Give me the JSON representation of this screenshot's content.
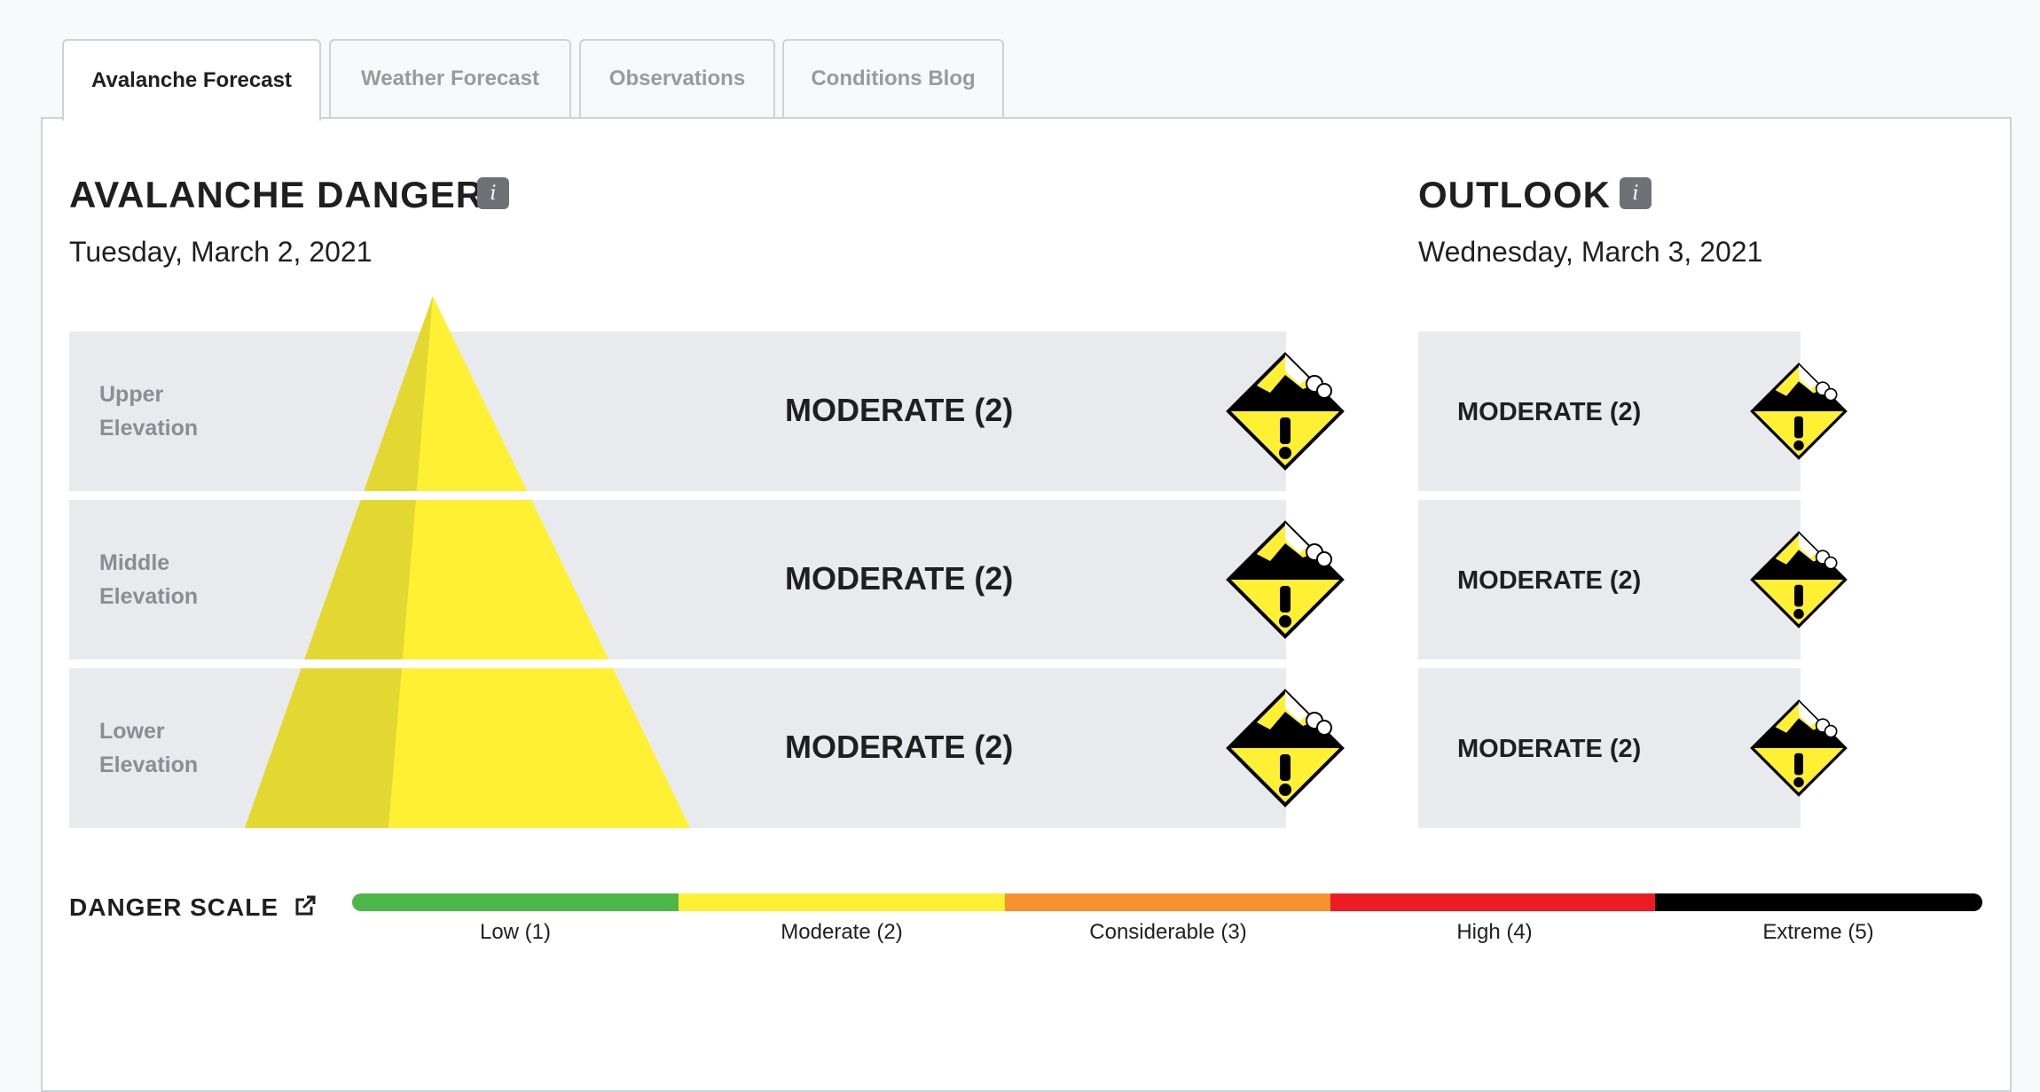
{
  "tabs": [
    {
      "label": "Avalanche Forecast",
      "active": true
    },
    {
      "label": "Weather Forecast",
      "active": false
    },
    {
      "label": "Observations",
      "active": false
    },
    {
      "label": "Conditions Blog",
      "active": false
    }
  ],
  "danger": {
    "title": "AVALANCHE DANGER",
    "info_icon": "info-icon",
    "date": "Tuesday, March 2, 2021",
    "rows": [
      {
        "elevation_line1": "Upper",
        "elevation_line2": "Elevation",
        "rating": "MODERATE (2)"
      },
      {
        "elevation_line1": "Middle",
        "elevation_line2": "Elevation",
        "rating": "MODERATE (2)"
      },
      {
        "elevation_line1": "Lower",
        "elevation_line2": "Elevation",
        "rating": "MODERATE (2)"
      }
    ]
  },
  "outlook": {
    "title": "OUTLOOK",
    "info_icon": "info-icon",
    "date": "Wednesday, March 3, 2021",
    "rows": [
      {
        "rating": "MODERATE (2)"
      },
      {
        "rating": "MODERATE (2)"
      },
      {
        "rating": "MODERATE (2)"
      }
    ]
  },
  "scale": {
    "title": "DANGER SCALE",
    "external_icon": "external-link-icon",
    "levels": [
      {
        "label": "Low (1)",
        "color": "#4cb748"
      },
      {
        "label": "Moderate (2)",
        "color": "#fff033"
      },
      {
        "label": "Considerable (3)",
        "color": "#f7922f"
      },
      {
        "label": "High (4)",
        "color": "#ed1c24"
      },
      {
        "label": "Extreme (5)",
        "color": "#000000"
      }
    ]
  },
  "colors": {
    "moderate_yellow": "#fff033",
    "band_gray": "#e8eaed"
  }
}
